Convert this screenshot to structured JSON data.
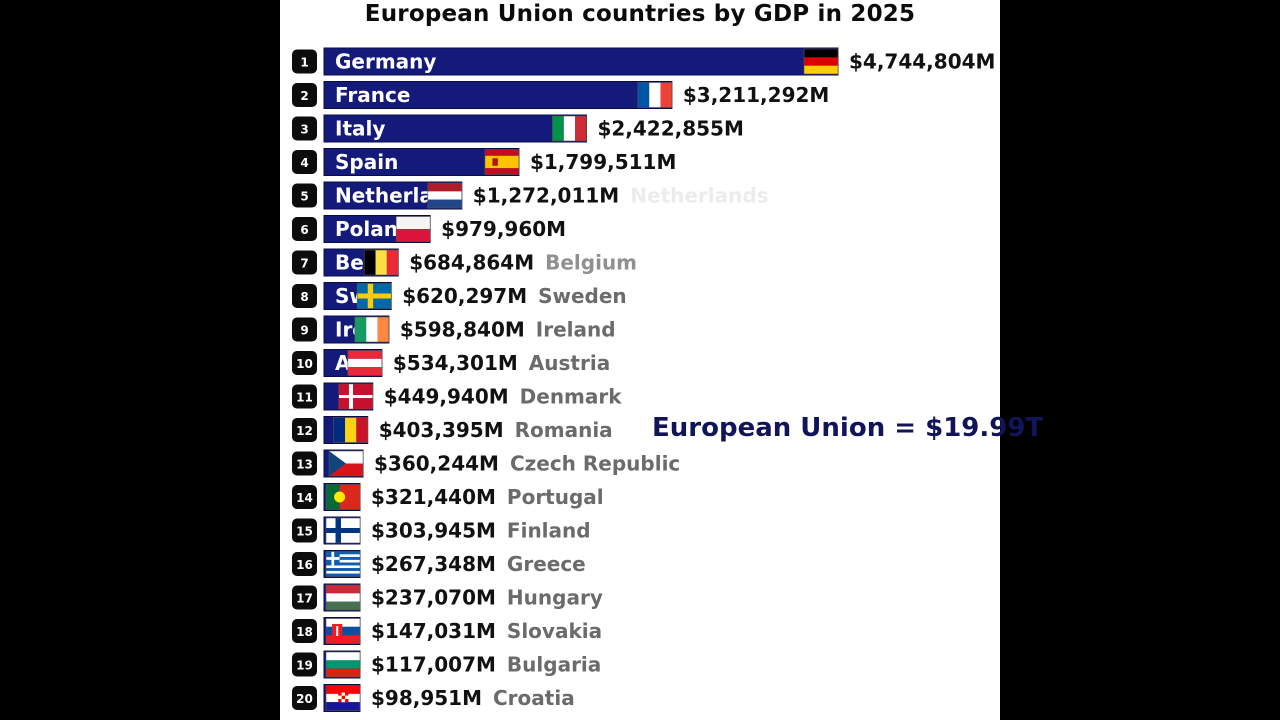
{
  "title": "European Union countries by GDP in 2025",
  "total_label": "European Union = $19.99T",
  "colors": {
    "bar": "#141a7a",
    "bar_edge": "#0a0d45",
    "rank_bg": "#0c0c0c",
    "value_text": "#111111",
    "name_text": "#6b6b6b",
    "total_text": "#12145a"
  },
  "chart_data": {
    "type": "bar",
    "orientation": "horizontal",
    "title": "European Union countries by GDP in 2025",
    "unit": "M",
    "categories": [
      "Germany",
      "France",
      "Italy",
      "Spain",
      "Netherlands",
      "Poland",
      "Belgium",
      "Sweden",
      "Ireland",
      "Austria",
      "Denmark",
      "Romania",
      "Czech Republic",
      "Portugal",
      "Finland",
      "Greece",
      "Hungary",
      "Slovakia",
      "Bulgaria",
      "Croatia"
    ],
    "ranks": [
      1,
      2,
      3,
      4,
      5,
      6,
      7,
      8,
      9,
      10,
      11,
      12,
      13,
      14,
      15,
      16,
      17,
      18,
      19,
      20
    ],
    "values": [
      4744804,
      3211292,
      2422855,
      1799511,
      1272011,
      979960,
      684864,
      620297,
      598840,
      534301,
      449940,
      403395,
      360244,
      321440,
      303945,
      267348,
      237070,
      147031,
      117007,
      98951
    ],
    "value_labels": [
      "$4,744,804M",
      "$3,211,292M",
      "$2,422,855M",
      "$1,799,511M",
      "$1,272,011M",
      "$979,960M",
      "$684,864M",
      "$620,297M",
      "$598,840M",
      "$534,301M",
      "$449,940M",
      "$403,395M",
      "$360,244M",
      "$321,440M",
      "$303,945M",
      "$267,348M",
      "$237,070M",
      "$147,031M",
      "$117,007M",
      "$98,951M"
    ],
    "flags": [
      "germany-flag",
      "france-flag",
      "italy-flag",
      "spain-flag",
      "netherlands-flag",
      "poland-flag",
      "belgium-flag",
      "sweden-flag",
      "ireland-flag",
      "austria-flag",
      "denmark-flag",
      "romania-flag",
      "czech-republic-flag",
      "portugal-flag",
      "finland-flag",
      "greece-flag",
      "hungary-flag",
      "slovakia-flag",
      "bulgaria-flag",
      "croatia-flag"
    ],
    "name_inside_bar": [
      true,
      true,
      true,
      true,
      true,
      true,
      true,
      true,
      true,
      true,
      false,
      false,
      false,
      false,
      false,
      false,
      false,
      false,
      false,
      false
    ],
    "name_outside_bar": [
      false,
      false,
      false,
      false,
      true,
      false,
      true,
      true,
      true,
      true,
      true,
      true,
      true,
      true,
      true,
      true,
      true,
      true,
      true,
      true
    ],
    "outside_name_opacity": [
      0,
      0,
      0,
      0,
      0.12,
      0,
      0.75,
      1,
      1,
      1,
      1,
      1,
      1,
      1,
      1,
      1,
      1,
      1,
      1,
      1
    ],
    "xlim": [
      0,
      4744804
    ]
  }
}
